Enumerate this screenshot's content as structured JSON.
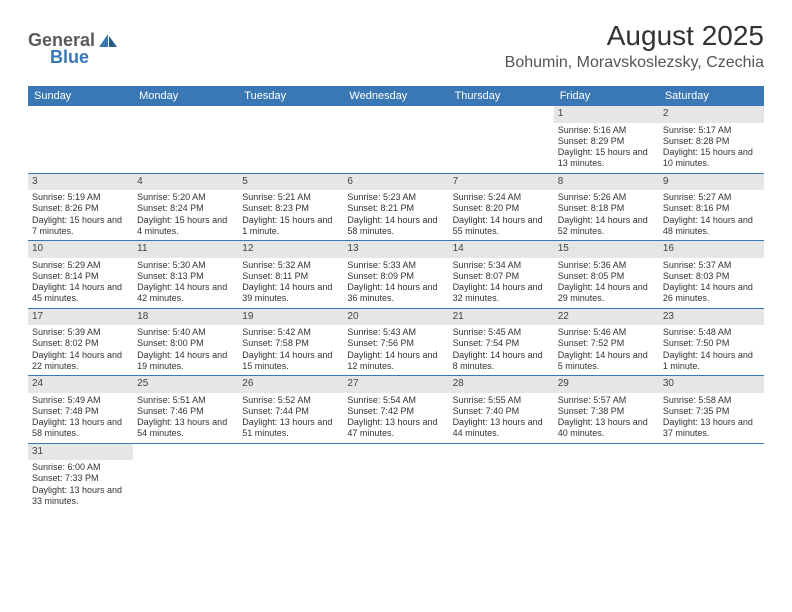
{
  "logo": {
    "text1": "General",
    "text2": "Blue"
  },
  "title": "August 2025",
  "location": "Bohumin, Moravskoslezsky, Czechia",
  "colors": {
    "header_bg": "#3a78b5",
    "daynum_bg": "#e6e6e6",
    "week_divider": "#3a78b5",
    "logo_gray": "#5a5a5a",
    "logo_blue": "#3a78b5"
  },
  "fonts": {
    "title_size": 28,
    "location_size": 16,
    "day_header_size": 11,
    "daynum_size": 10,
    "cell_size": 9
  },
  "day_headers": [
    "Sunday",
    "Monday",
    "Tuesday",
    "Wednesday",
    "Thursday",
    "Friday",
    "Saturday"
  ],
  "weeks": [
    [
      null,
      null,
      null,
      null,
      null,
      {
        "n": "1",
        "sr": "Sunrise: 5:16 AM",
        "ss": "Sunset: 8:29 PM",
        "dl": "Daylight: 15 hours and 13 minutes."
      },
      {
        "n": "2",
        "sr": "Sunrise: 5:17 AM",
        "ss": "Sunset: 8:28 PM",
        "dl": "Daylight: 15 hours and 10 minutes."
      }
    ],
    [
      {
        "n": "3",
        "sr": "Sunrise: 5:19 AM",
        "ss": "Sunset: 8:26 PM",
        "dl": "Daylight: 15 hours and 7 minutes."
      },
      {
        "n": "4",
        "sr": "Sunrise: 5:20 AM",
        "ss": "Sunset: 8:24 PM",
        "dl": "Daylight: 15 hours and 4 minutes."
      },
      {
        "n": "5",
        "sr": "Sunrise: 5:21 AM",
        "ss": "Sunset: 8:23 PM",
        "dl": "Daylight: 15 hours and 1 minute."
      },
      {
        "n": "6",
        "sr": "Sunrise: 5:23 AM",
        "ss": "Sunset: 8:21 PM",
        "dl": "Daylight: 14 hours and 58 minutes."
      },
      {
        "n": "7",
        "sr": "Sunrise: 5:24 AM",
        "ss": "Sunset: 8:20 PM",
        "dl": "Daylight: 14 hours and 55 minutes."
      },
      {
        "n": "8",
        "sr": "Sunrise: 5:26 AM",
        "ss": "Sunset: 8:18 PM",
        "dl": "Daylight: 14 hours and 52 minutes."
      },
      {
        "n": "9",
        "sr": "Sunrise: 5:27 AM",
        "ss": "Sunset: 8:16 PM",
        "dl": "Daylight: 14 hours and 48 minutes."
      }
    ],
    [
      {
        "n": "10",
        "sr": "Sunrise: 5:29 AM",
        "ss": "Sunset: 8:14 PM",
        "dl": "Daylight: 14 hours and 45 minutes."
      },
      {
        "n": "11",
        "sr": "Sunrise: 5:30 AM",
        "ss": "Sunset: 8:13 PM",
        "dl": "Daylight: 14 hours and 42 minutes."
      },
      {
        "n": "12",
        "sr": "Sunrise: 5:32 AM",
        "ss": "Sunset: 8:11 PM",
        "dl": "Daylight: 14 hours and 39 minutes."
      },
      {
        "n": "13",
        "sr": "Sunrise: 5:33 AM",
        "ss": "Sunset: 8:09 PM",
        "dl": "Daylight: 14 hours and 36 minutes."
      },
      {
        "n": "14",
        "sr": "Sunrise: 5:34 AM",
        "ss": "Sunset: 8:07 PM",
        "dl": "Daylight: 14 hours and 32 minutes."
      },
      {
        "n": "15",
        "sr": "Sunrise: 5:36 AM",
        "ss": "Sunset: 8:05 PM",
        "dl": "Daylight: 14 hours and 29 minutes."
      },
      {
        "n": "16",
        "sr": "Sunrise: 5:37 AM",
        "ss": "Sunset: 8:03 PM",
        "dl": "Daylight: 14 hours and 26 minutes."
      }
    ],
    [
      {
        "n": "17",
        "sr": "Sunrise: 5:39 AM",
        "ss": "Sunset: 8:02 PM",
        "dl": "Daylight: 14 hours and 22 minutes."
      },
      {
        "n": "18",
        "sr": "Sunrise: 5:40 AM",
        "ss": "Sunset: 8:00 PM",
        "dl": "Daylight: 14 hours and 19 minutes."
      },
      {
        "n": "19",
        "sr": "Sunrise: 5:42 AM",
        "ss": "Sunset: 7:58 PM",
        "dl": "Daylight: 14 hours and 15 minutes."
      },
      {
        "n": "20",
        "sr": "Sunrise: 5:43 AM",
        "ss": "Sunset: 7:56 PM",
        "dl": "Daylight: 14 hours and 12 minutes."
      },
      {
        "n": "21",
        "sr": "Sunrise: 5:45 AM",
        "ss": "Sunset: 7:54 PM",
        "dl": "Daylight: 14 hours and 8 minutes."
      },
      {
        "n": "22",
        "sr": "Sunrise: 5:46 AM",
        "ss": "Sunset: 7:52 PM",
        "dl": "Daylight: 14 hours and 5 minutes."
      },
      {
        "n": "23",
        "sr": "Sunrise: 5:48 AM",
        "ss": "Sunset: 7:50 PM",
        "dl": "Daylight: 14 hours and 1 minute."
      }
    ],
    [
      {
        "n": "24",
        "sr": "Sunrise: 5:49 AM",
        "ss": "Sunset: 7:48 PM",
        "dl": "Daylight: 13 hours and 58 minutes."
      },
      {
        "n": "25",
        "sr": "Sunrise: 5:51 AM",
        "ss": "Sunset: 7:46 PM",
        "dl": "Daylight: 13 hours and 54 minutes."
      },
      {
        "n": "26",
        "sr": "Sunrise: 5:52 AM",
        "ss": "Sunset: 7:44 PM",
        "dl": "Daylight: 13 hours and 51 minutes."
      },
      {
        "n": "27",
        "sr": "Sunrise: 5:54 AM",
        "ss": "Sunset: 7:42 PM",
        "dl": "Daylight: 13 hours and 47 minutes."
      },
      {
        "n": "28",
        "sr": "Sunrise: 5:55 AM",
        "ss": "Sunset: 7:40 PM",
        "dl": "Daylight: 13 hours and 44 minutes."
      },
      {
        "n": "29",
        "sr": "Sunrise: 5:57 AM",
        "ss": "Sunset: 7:38 PM",
        "dl": "Daylight: 13 hours and 40 minutes."
      },
      {
        "n": "30",
        "sr": "Sunrise: 5:58 AM",
        "ss": "Sunset: 7:35 PM",
        "dl": "Daylight: 13 hours and 37 minutes."
      }
    ],
    [
      {
        "n": "31",
        "sr": "Sunrise: 6:00 AM",
        "ss": "Sunset: 7:33 PM",
        "dl": "Daylight: 13 hours and 33 minutes."
      },
      null,
      null,
      null,
      null,
      null,
      null
    ]
  ]
}
